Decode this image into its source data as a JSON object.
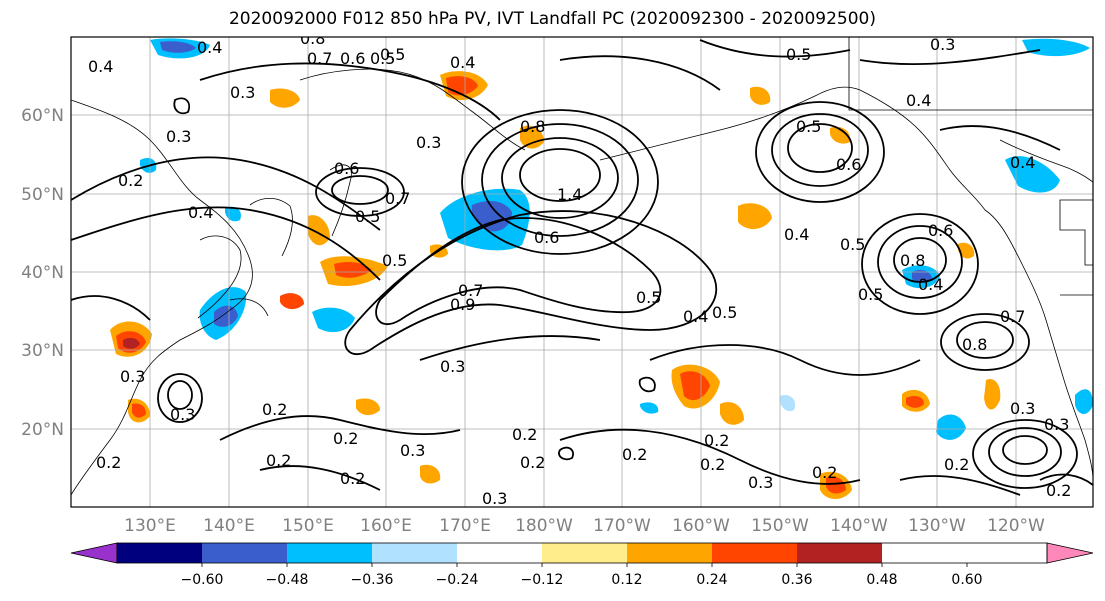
{
  "title": "2020092000 F012 850 hPa PV, IVT Landfall PC (2020092300 - 2020092500)",
  "lat_labels": [
    "60°N",
    "50°N",
    "40°N",
    "30°N",
    "20°N"
  ],
  "lon_labels": [
    "130°E",
    "140°E",
    "150°E",
    "160°E",
    "170°E",
    "180°W",
    "170°W",
    "160°W",
    "150°W",
    "140°W",
    "130°W",
    "120°W"
  ],
  "colorbar": {
    "colors": [
      "#9932cc",
      "#00007f",
      "#3a5fcd",
      "#00bfff",
      "#b0e2ff",
      "#ffffff",
      "#ffec8b",
      "#ffa500",
      "#ff4500",
      "#b22222",
      "#ff88bb"
    ],
    "ticks": [
      "−0.60",
      "−0.48",
      "−0.36",
      "−0.24",
      "−0.12",
      "0.12",
      "0.24",
      "0.36",
      "0.48",
      "0.60"
    ]
  },
  "contour_labels": [
    "0.4",
    "0.4",
    "0.3",
    "0.7",
    "0.6",
    "0.5",
    "0.8",
    "0.5",
    "0.4",
    "0.3",
    "0.2",
    "0.4",
    "0.6",
    "0.7",
    "0.5",
    "0.3",
    "0.5",
    "0.8",
    "1.4",
    "0.7",
    "0.9",
    "0.6",
    "0.5",
    "0.4",
    "0.5",
    "0.3",
    "0.2",
    "0.2",
    "0.3",
    "0.2",
    "0.2",
    "0.3",
    "0.2",
    "0.2",
    "0.3",
    "0.2",
    "0.4",
    "0.5",
    "0.6",
    "0.5",
    "0.4",
    "0.8",
    "0.5",
    "0.4",
    "0.6",
    "0.7",
    "0.8",
    "0.5",
    "0.3",
    "0.2",
    "0.2",
    "0.3",
    "0.2",
    "0.4",
    "0.2",
    "0.3",
    "0.2",
    "0.3",
    "0.2",
    "0.3"
  ],
  "icons": [
    "colorbar-left-arrow",
    "colorbar-right-arrow"
  ]
}
